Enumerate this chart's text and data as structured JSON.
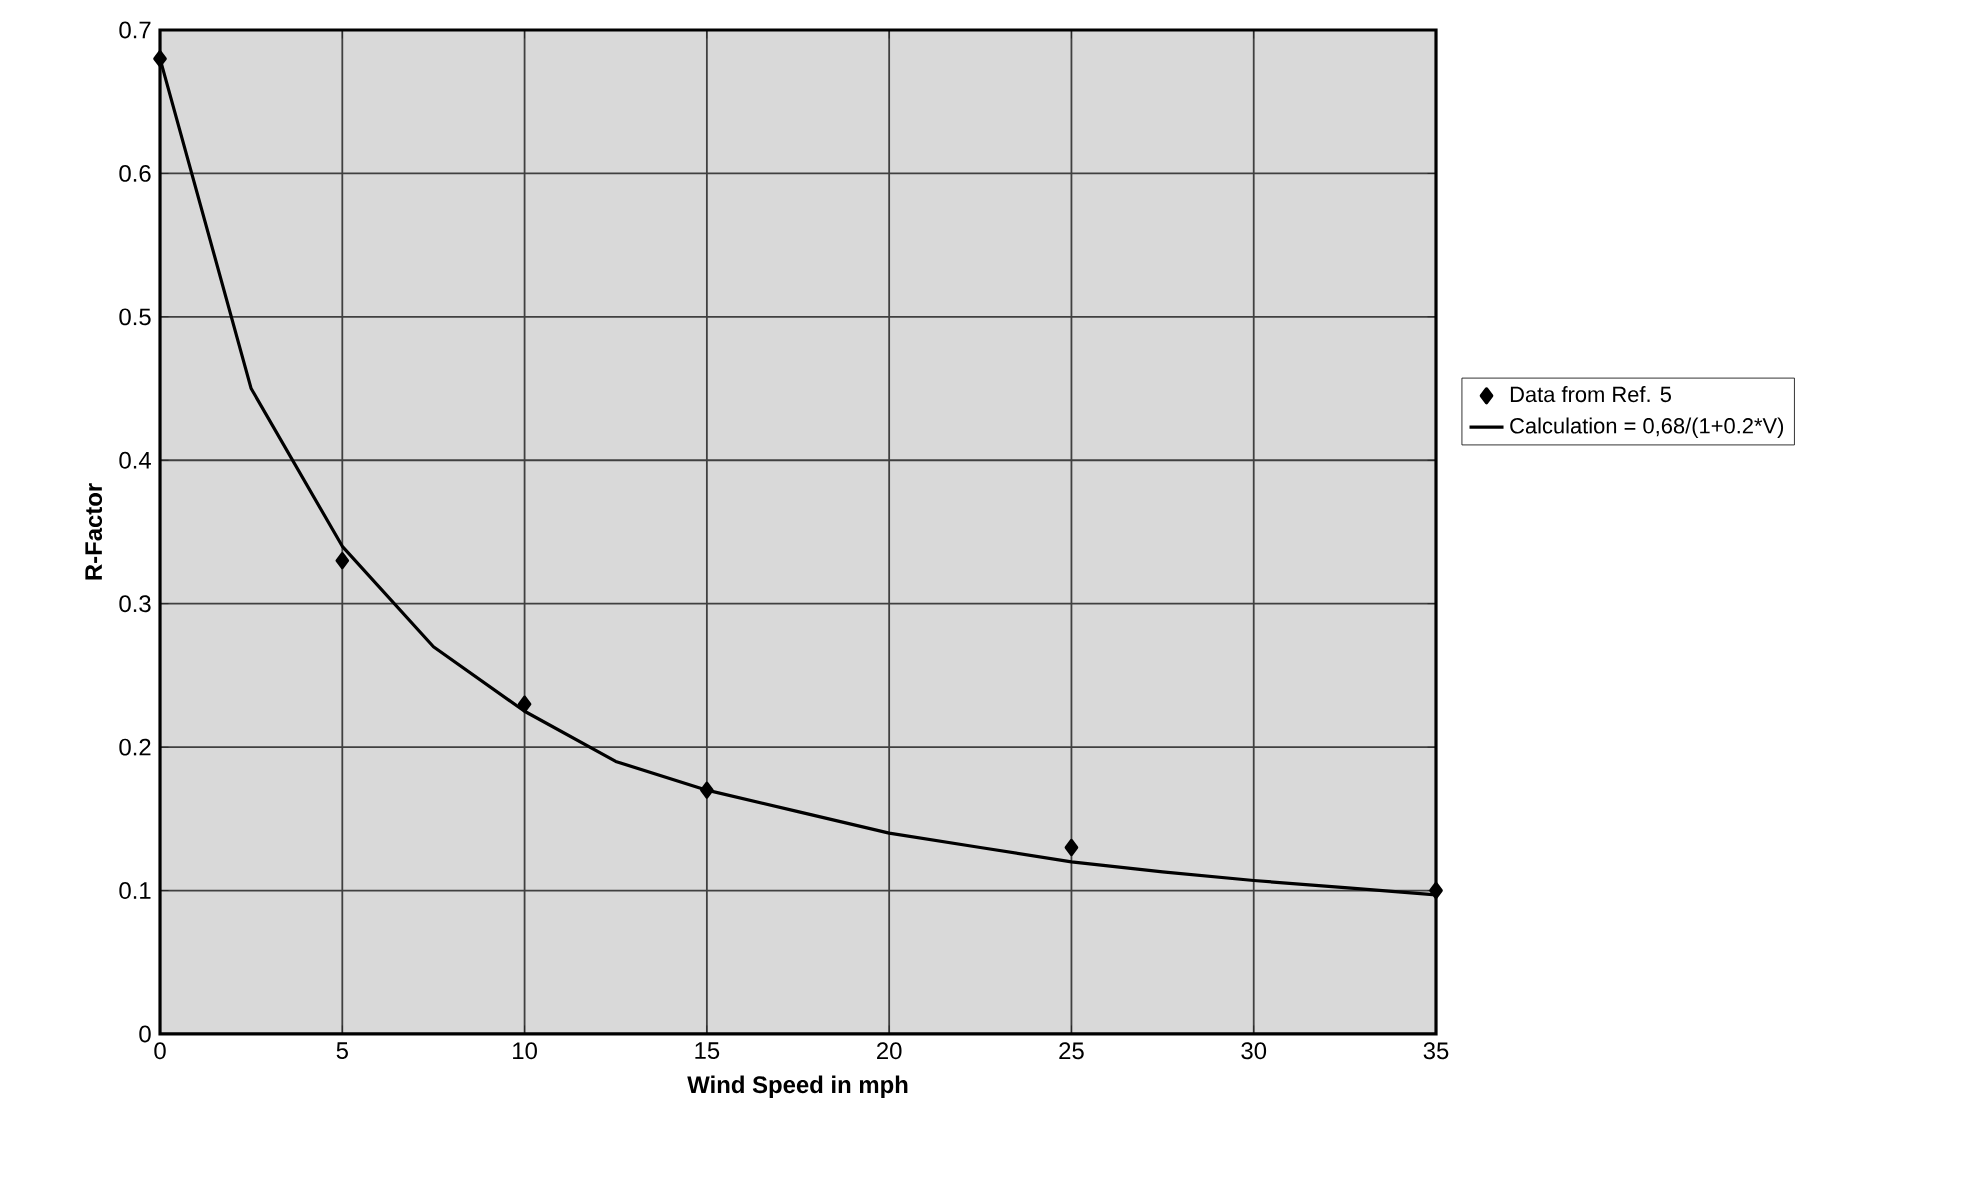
{
  "chart_data": {
    "type": "line",
    "xlabel": "Wind Speed in mph",
    "ylabel": "R-Factor",
    "xlim": [
      0,
      35
    ],
    "ylim": [
      0,
      0.7
    ],
    "xticks": [
      0,
      5,
      10,
      15,
      20,
      25,
      30,
      35
    ],
    "yticks": [
      0,
      0.1,
      0.2,
      0.3,
      0.4,
      0.5,
      0.6,
      0.7
    ],
    "grid": true,
    "legend": "right",
    "series": [
      {
        "name": "Data from Ref. 5",
        "type": "scatter",
        "marker": "diamond",
        "color": "#000000",
        "x": [
          0,
          5,
          10,
          15,
          25,
          35
        ],
        "values": [
          0.68,
          0.33,
          0.23,
          0.17,
          0.13,
          0.1
        ]
      },
      {
        "name": "Calculation = 0,68/(1+0.2*V)",
        "marker": "none",
        "line_style": "solid",
        "color": "#000000",
        "x": [
          0,
          2.5,
          5,
          7.5,
          10,
          12.5,
          15,
          17.5,
          20,
          22.5,
          25,
          27.5,
          30,
          32.5,
          35
        ],
        "values": [
          0.68,
          0.45,
          0.34,
          0.27,
          0.225,
          0.19,
          0.17,
          0.155,
          0.14,
          0.13,
          0.12,
          0.113,
          0.107,
          0.102,
          0.097
        ]
      }
    ]
  }
}
